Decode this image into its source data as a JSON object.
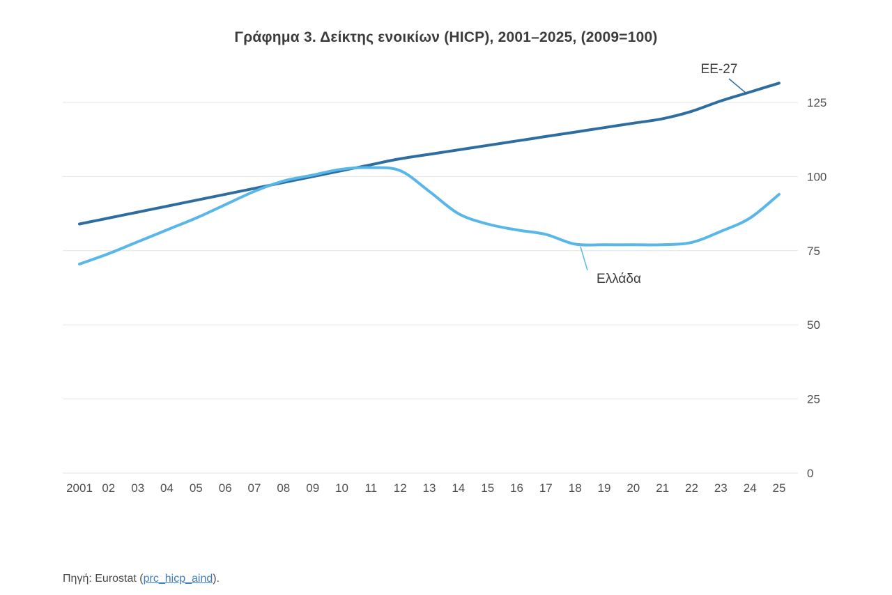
{
  "chart": {
    "title": "Γράφημα 3. Δείκτης ενοικίων (HICP), 2001–2025, (2009=100)"
  },
  "source": {
    "prefix": "Πηγή: Eurostat (",
    "link_text": "prc_hicp_aind",
    "suffix": ")."
  },
  "chart_data": {
    "type": "line",
    "title": "Γράφημα 3. Δείκτης ενοικίων (HICP), 2001–2025, (2009=100)",
    "x": [
      "2001",
      "02",
      "03",
      "04",
      "05",
      "06",
      "07",
      "08",
      "09",
      "10",
      "11",
      "12",
      "13",
      "14",
      "15",
      "16",
      "17",
      "18",
      "19",
      "20",
      "21",
      "22",
      "23",
      "24",
      "25"
    ],
    "yticks": [
      0,
      25,
      50,
      75,
      100,
      125
    ],
    "ylim": [
      0,
      135
    ],
    "grid": true,
    "legend_position": "inline-annotations",
    "colors": {
      "ee27": "#2d6d9f",
      "greece": "#58b7e8",
      "gridline": "#e4e4e4"
    },
    "series": [
      {
        "name": "EE-27",
        "color": "#2d6d9f",
        "values": [
          84,
          86,
          88,
          90,
          92,
          94,
          96,
          98,
          100,
          102,
          104,
          106,
          107.5,
          109,
          110.5,
          112,
          113.5,
          115,
          116.5,
          118,
          119.5,
          122,
          125.5,
          128.5,
          131.5
        ]
      },
      {
        "name": "Ελλάδα",
        "color": "#58b7e8",
        "values": [
          70.5,
          74,
          78,
          82,
          86,
          90.5,
          95,
          98.5,
          100.5,
          102.5,
          103,
          102,
          95,
          87.5,
          84,
          82,
          80.5,
          77.2,
          77,
          77,
          77,
          77.8,
          81.5,
          86,
          94
        ]
      }
    ]
  }
}
